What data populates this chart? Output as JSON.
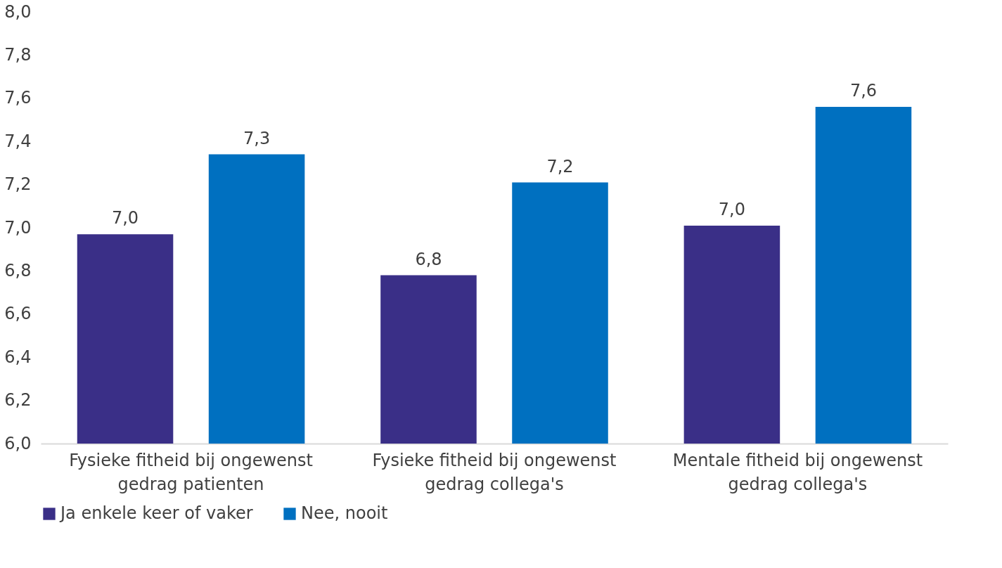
{
  "chart_data": {
    "type": "bar",
    "categories": [
      "Fysieke fitheid bij ongewenst gedrag patienten",
      "Fysieke fitheid bij ongewenst gedrag collega's",
      "Mentale fitheid bij ongewenst gedrag collega's"
    ],
    "series": [
      {
        "name": "Ja enkele keer of vaker",
        "color": "#3a2f87",
        "values": [
          6.97,
          6.78,
          7.01
        ],
        "value_labels": [
          "7,0",
          "6,8",
          "7,0"
        ]
      },
      {
        "name": "Nee, nooit",
        "color": "#0070c0",
        "values": [
          7.34,
          7.21,
          7.56
        ],
        "value_labels": [
          "7,3",
          "7,2",
          "7,6"
        ]
      }
    ],
    "ylim": [
      6.0,
      8.0
    ],
    "yticks": [
      {
        "value": 6.0,
        "label": "6,0"
      },
      {
        "value": 6.2,
        "label": "6,2"
      },
      {
        "value": 6.4,
        "label": "6,4"
      },
      {
        "value": 6.6,
        "label": "6,6"
      },
      {
        "value": 6.8,
        "label": "6,8"
      },
      {
        "value": 7.0,
        "label": "7,0"
      },
      {
        "value": 7.2,
        "label": "7,2"
      },
      {
        "value": 7.4,
        "label": "7,4"
      },
      {
        "value": 7.6,
        "label": "7,6"
      },
      {
        "value": 7.8,
        "label": "7,8"
      },
      {
        "value": 8.0,
        "label": "8,0"
      }
    ],
    "grid": false,
    "legend": "bottom"
  }
}
